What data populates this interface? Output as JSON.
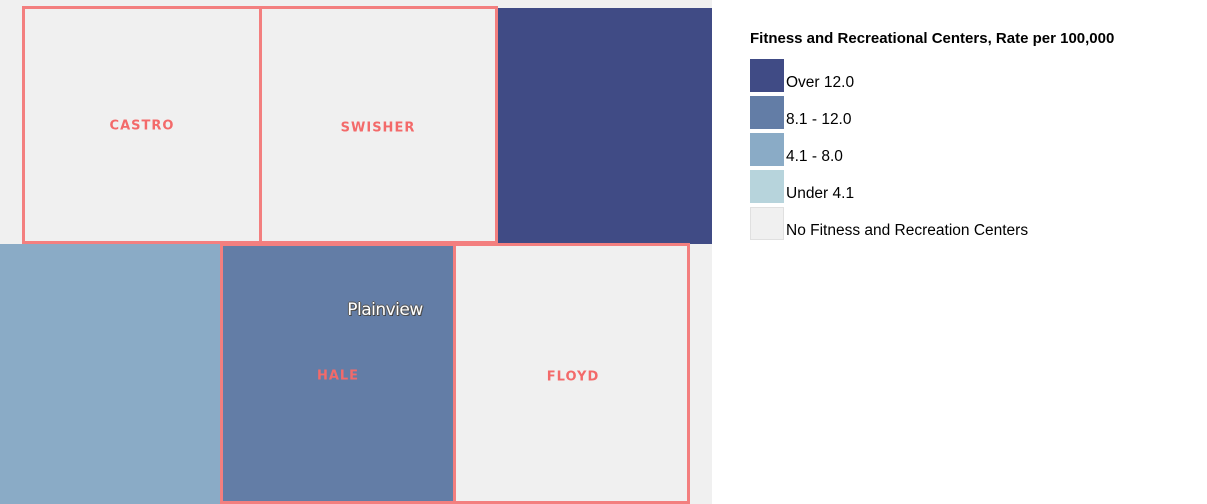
{
  "map": {
    "counties": [
      {
        "name": "CASTRO",
        "fill": "#f0f0f0",
        "category": "No Fitness and Recreation Centers"
      },
      {
        "name": "SWISHER",
        "fill": "#f0f0f0",
        "category": "No Fitness and Recreation Centers"
      },
      {
        "name": "HALE",
        "fill": "#637da6",
        "category": "8.1 - 12.0"
      },
      {
        "name": "FLOYD",
        "fill": "#f0f0f0",
        "category": "No Fitness and Recreation Centers"
      }
    ],
    "neighbors": [
      {
        "fill": "#404b85",
        "category": "Over 12.0"
      },
      {
        "fill": "#8aabc6",
        "category": "4.1 - 8.0"
      }
    ],
    "cities": [
      {
        "name": "Plainview"
      }
    ]
  },
  "legend": {
    "title": "Fitness and Recreational Centers, Rate per 100,000",
    "items": [
      {
        "label": "Over 12.0",
        "color": "#404b85"
      },
      {
        "label": "8.1 - 12.0",
        "color": "#637da6"
      },
      {
        "label": "4.1 - 8.0",
        "color": "#8aabc6"
      },
      {
        "label": "Under 4.1",
        "color": "#b7d4dc"
      },
      {
        "label": "No Fitness and Recreation Centers",
        "color": "#f0f0f0"
      }
    ]
  }
}
